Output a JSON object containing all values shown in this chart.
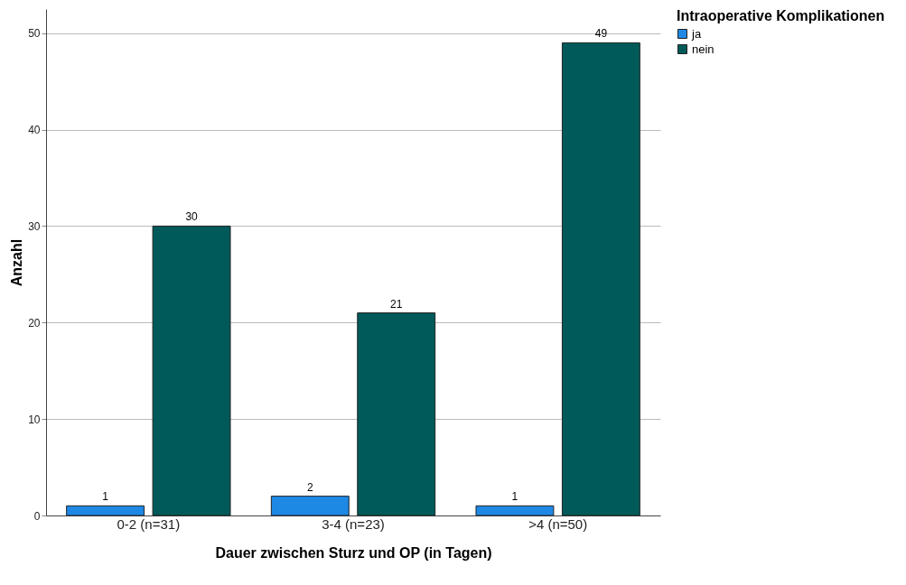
{
  "chart_data": {
    "type": "bar",
    "xlabel": "Dauer zwischen Sturz und OP (in Tagen)",
    "ylabel": "Anzahl",
    "legend_title": "Intraoperative Komplikationen",
    "categories": [
      "0-2 (n=31)",
      "3-4 (n=23)",
      ">4 (n=50)"
    ],
    "series": [
      {
        "name": "ja",
        "color": "#1e88e5",
        "values": [
          1,
          2,
          1
        ]
      },
      {
        "name": "nein",
        "color": "#005a5a",
        "values": [
          30,
          21,
          49
        ]
      }
    ],
    "ylim": [
      0,
      52.5
    ],
    "yticks": [
      0,
      10,
      20,
      30,
      40,
      50
    ],
    "grid": "y",
    "legend": "top right",
    "data_labels": true
  }
}
